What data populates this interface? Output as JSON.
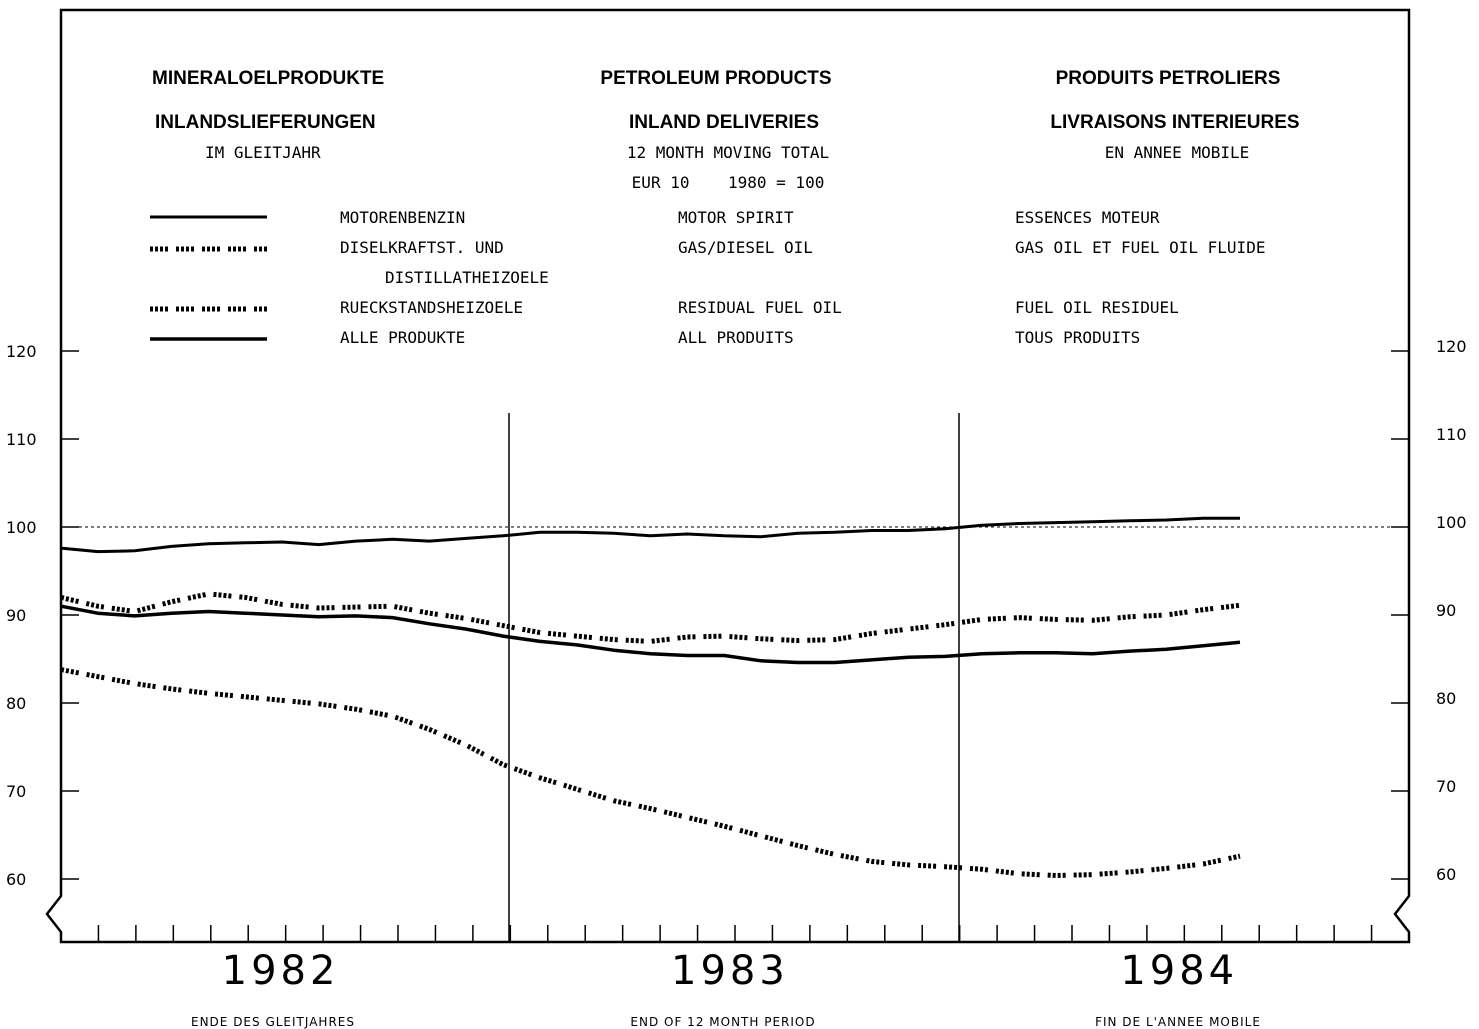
{
  "header": {
    "de": {
      "title": "MINERALOELPRODUKTE",
      "subtitle": "INLANDSLIEFERUNGEN",
      "note": "IM GLEITJAHR"
    },
    "en": {
      "title": "PETROLEUM PRODUCTS",
      "subtitle": "INLAND DELIVERIES",
      "note": "12 MONTH MOVING TOTAL",
      "index": "EUR 10    1980 = 100"
    },
    "fr": {
      "title": "PRODUITS PETROLIERS",
      "subtitle": "LIVRAISONS INTERIEURES",
      "note": "EN ANNEE MOBILE"
    }
  },
  "legend": [
    {
      "style": "solid",
      "de": "MOTORENBENZIN",
      "en": "MOTOR SPIRIT",
      "fr": "ESSENCES MOTEUR"
    },
    {
      "style": "dashed",
      "de": "DISELKRAFTST. UND",
      "de2": "DISTILLATHEIZOELE",
      "en": "GAS/DIESEL OIL",
      "fr": "GAS OIL ET FUEL OIL FLUIDE"
    },
    {
      "style": "dashed",
      "de": "RUECKSTANDSHEIZOELE",
      "en": "RESIDUAL FUEL OIL",
      "fr": "FUEL OIL RESIDUEL"
    },
    {
      "style": "solid",
      "de": "ALLE PRODUKTE",
      "en": "ALL PRODUITS",
      "fr": "TOUS PRODUITS"
    }
  ],
  "footer": {
    "de": "ENDE DES GLEITJAHRES",
    "en": "END OF 12 MONTH PERIOD",
    "fr": "FIN DE L'ANNEE MOBILE"
  },
  "chart_data": {
    "type": "line",
    "x_months_per_year": 12,
    "years": [
      "1982",
      "1983",
      "1984"
    ],
    "yticks": [
      60,
      70,
      80,
      90,
      100,
      110,
      120
    ],
    "ylim": [
      53,
      122
    ],
    "reference_line": 100,
    "grid": false,
    "legend_position": "top",
    "series": [
      {
        "name": "MOTORENBENZIN",
        "style": "solid",
        "values": [
          97.6,
          97.2,
          97.3,
          97.8,
          98.1,
          98.2,
          98.3,
          98.0,
          98.4,
          98.6,
          98.4,
          98.7,
          99.0,
          99.4,
          99.4,
          99.3,
          99.0,
          99.2,
          99.0,
          98.9,
          99.3,
          99.4,
          99.6,
          99.6,
          99.8,
          100.2,
          100.4,
          100.5,
          100.6,
          100.7,
          100.8,
          101.0,
          101.0
        ]
      },
      {
        "name": "DISELKRAFTST. UND DISTILLATHEIZOELE",
        "style": "dashed",
        "values": [
          92.0,
          91.0,
          90.4,
          91.5,
          92.4,
          92.0,
          91.2,
          90.8,
          90.9,
          91.0,
          90.2,
          89.6,
          88.8,
          88.0,
          87.6,
          87.2,
          87.0,
          87.5,
          87.6,
          87.3,
          87.1,
          87.2,
          87.9,
          88.4,
          88.9,
          89.5,
          89.7,
          89.5,
          89.4,
          89.8,
          90.0,
          90.6,
          91.1
        ]
      },
      {
        "name": "RUECKSTANDSHEIZOELE",
        "style": "dashed",
        "values": [
          83.8,
          83.0,
          82.2,
          81.6,
          81.1,
          80.7,
          80.3,
          79.9,
          79.3,
          78.5,
          77.0,
          75.2,
          73.0,
          71.5,
          70.2,
          68.9,
          68.0,
          67.0,
          66.0,
          64.9,
          63.8,
          62.8,
          62.0,
          61.6,
          61.4,
          61.1,
          60.6,
          60.4,
          60.5,
          60.8,
          61.2,
          61.7,
          62.6
        ]
      },
      {
        "name": "ALLE PRODUKTE",
        "style": "solid",
        "values": [
          91.0,
          90.2,
          89.9,
          90.2,
          90.4,
          90.2,
          90.0,
          89.8,
          89.9,
          89.7,
          89.0,
          88.4,
          87.6,
          87.0,
          86.6,
          86.0,
          85.6,
          85.4,
          85.4,
          84.8,
          84.6,
          84.6,
          84.9,
          85.2,
          85.3,
          85.6,
          85.7,
          85.7,
          85.6,
          85.9,
          86.1,
          86.5,
          86.9
        ]
      }
    ]
  }
}
